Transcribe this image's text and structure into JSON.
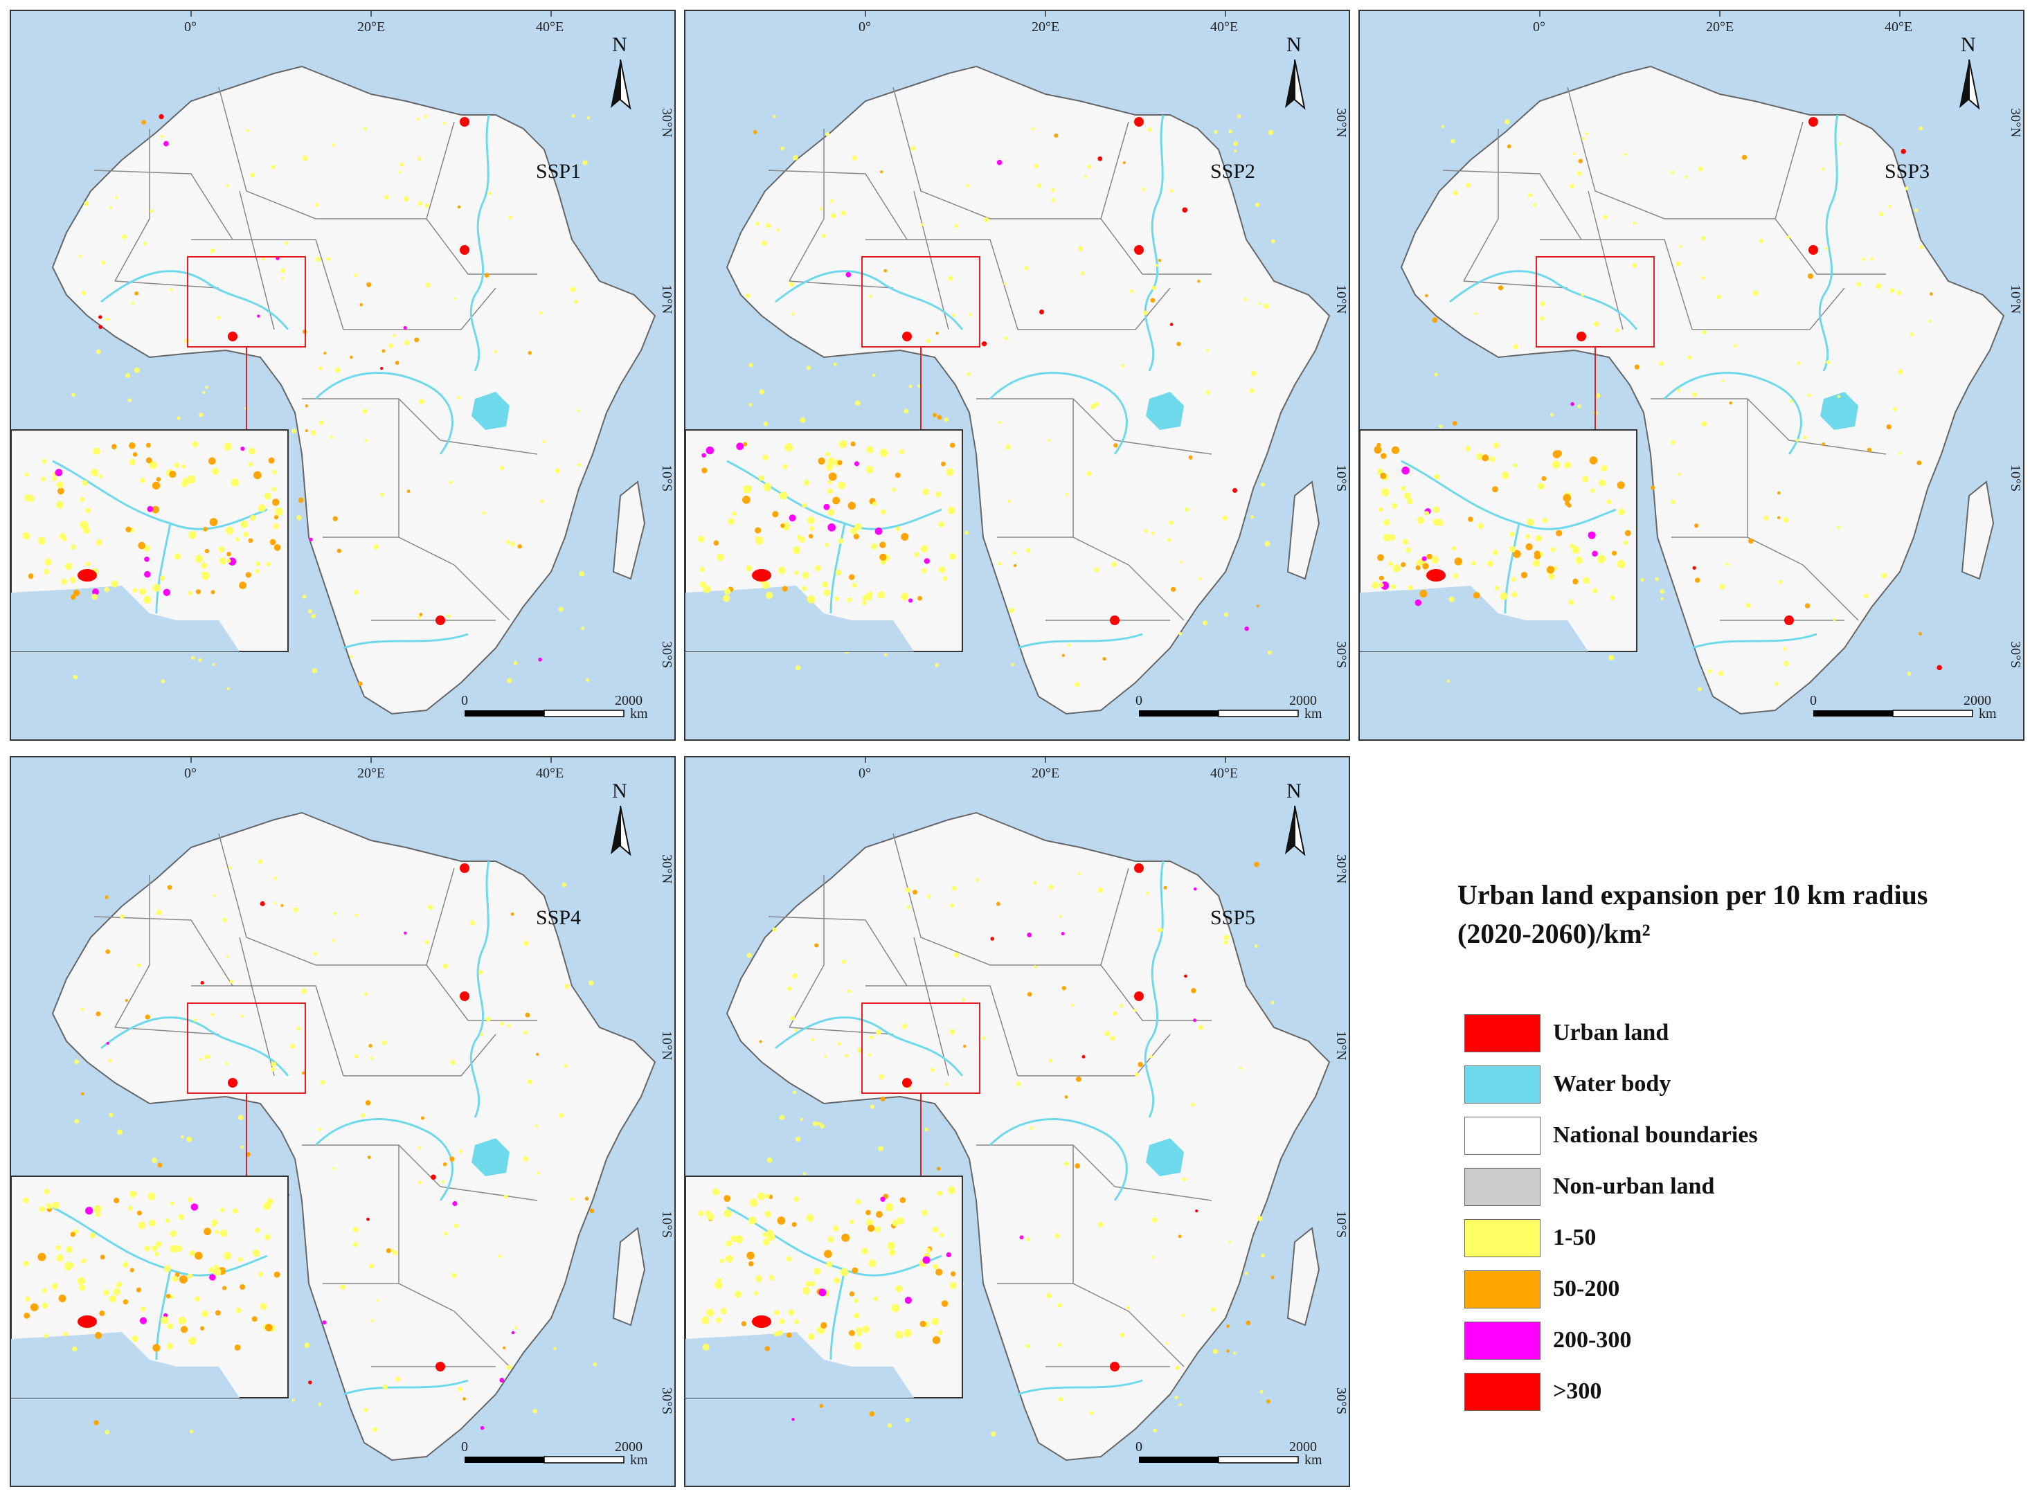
{
  "panels": [
    {
      "label": "SSP1"
    },
    {
      "label": "SSP2"
    },
    {
      "label": "SSP3"
    },
    {
      "label": "SSP4"
    },
    {
      "label": "SSP5"
    }
  ],
  "graticule": {
    "lon_labels": [
      "0°",
      "20°E",
      "40°E"
    ],
    "lat_labels": [
      "30°N",
      "10°N",
      "10°S",
      "30°S"
    ]
  },
  "north_arrow": "N",
  "scale_bar": {
    "start": "0",
    "end": "2000",
    "unit": "km"
  },
  "legend": {
    "title_line1": "Urban land expansion per 10 km radius",
    "title_line2": "(2020-2060)/km²",
    "items": [
      {
        "label": "Urban land",
        "color": "#ff0000"
      },
      {
        "label": "Water body",
        "color": "#6fd9ec"
      },
      {
        "label": "National boundaries",
        "color": "#ffffff"
      },
      {
        "label": "Non-urban land",
        "color": "#cccccc"
      },
      {
        "label": "1-50",
        "color": "#ffff66"
      },
      {
        "label": "50-200",
        "color": "#ffa500"
      },
      {
        "label": "200-300",
        "color": "#ff00ff"
      },
      {
        "label": ">300",
        "color": "#ff0000"
      }
    ]
  },
  "colors": {
    "ocean": "#bcd9f0",
    "land": "#f7f7f7",
    "boundary": "#888888",
    "water": "#6fd9ec",
    "inset_frame": "#e02020"
  }
}
